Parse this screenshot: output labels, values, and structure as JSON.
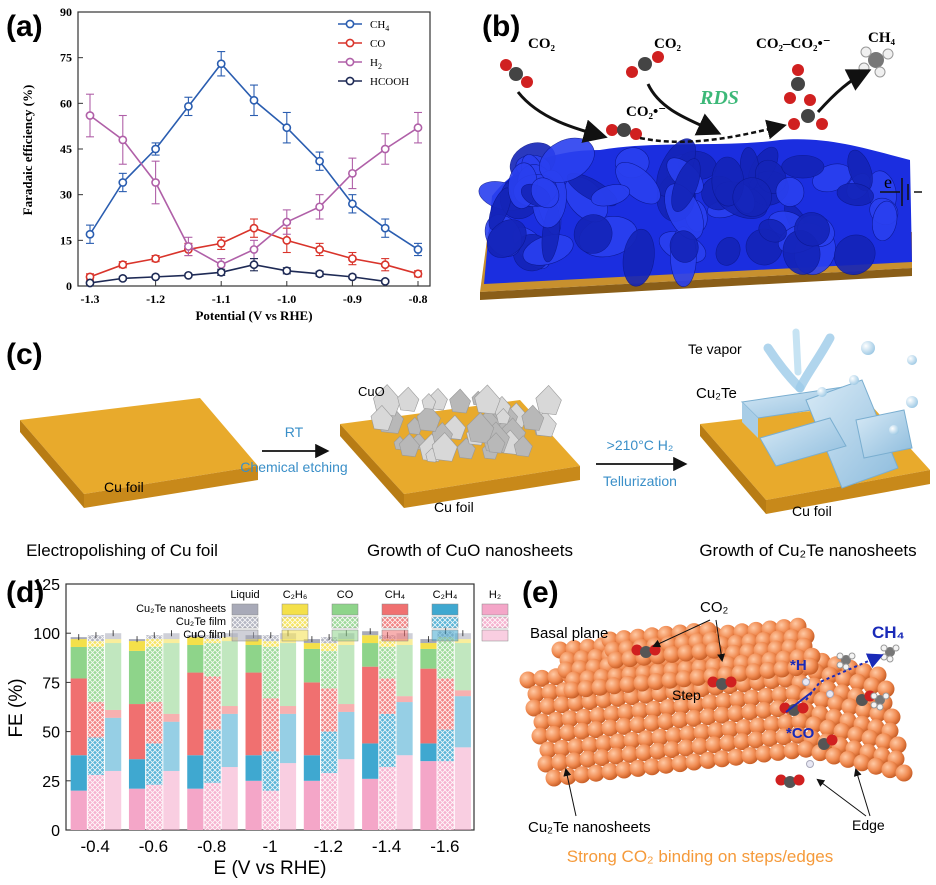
{
  "panel_a": {
    "label": "(a)",
    "chart_data": {
      "type": "line",
      "xlabel": "Potential (V vs RHE)",
      "ylabel": "Faradaic efficiency (%)",
      "xlim": [
        -1.3,
        -0.8
      ],
      "ylim": [
        0,
        90
      ],
      "xticks": [
        "-1.3",
        "-1.2",
        "-1.1",
        "-1.0",
        "-0.9",
        "-0.8"
      ],
      "yticks": [
        "0",
        "15",
        "30",
        "45",
        "60",
        "75",
        "90"
      ],
      "legend_position": "top-right",
      "x": [
        -1.3,
        -1.25,
        -1.2,
        -1.15,
        -1.1,
        -1.05,
        -1.0,
        -0.95,
        -0.9,
        -0.85,
        -0.8
      ],
      "series": [
        {
          "name": "CH4",
          "name_main": "CH",
          "name_sub": "4",
          "color": "#2a5db0",
          "values": [
            17,
            34,
            45,
            59,
            73,
            61,
            52,
            41,
            27,
            19,
            12
          ],
          "err": [
            3,
            3,
            2,
            3,
            4,
            5,
            5,
            3,
            3,
            3,
            2
          ]
        },
        {
          "name": "CO",
          "name_main": "CO",
          "name_sub": "",
          "color": "#d9342b",
          "values": [
            3,
            7,
            9,
            12,
            14,
            19,
            15,
            12,
            9,
            7,
            4
          ],
          "err": [
            1,
            1,
            1,
            2,
            2,
            3,
            4,
            2,
            2,
            2,
            1
          ]
        },
        {
          "name": "H2",
          "name_main": "H",
          "name_sub": "2",
          "color": "#b060a8",
          "values": [
            56,
            48,
            34,
            13,
            7,
            12,
            21,
            26,
            37,
            45,
            52
          ],
          "err": [
            7,
            8,
            7,
            3,
            2,
            3,
            4,
            4,
            5,
            5,
            5
          ]
        },
        {
          "name": "HCOOH",
          "name_main": "HCOOH",
          "name_sub": "",
          "color": "#1e2a55",
          "values": [
            1,
            2.5,
            3,
            3.5,
            4.5,
            7,
            5,
            4,
            3,
            1.5,
            null
          ],
          "err": [
            0.5,
            0.5,
            0.5,
            0.5,
            1,
            2,
            1,
            0.8,
            0.6,
            0.5,
            0
          ]
        }
      ]
    }
  },
  "panel_b": {
    "label": "(b)",
    "co2_1": "CO₂",
    "co2_2": "CO₂",
    "co2_chain": "CO₂–CO₂•⁻",
    "ch4": "CH₄",
    "co2_radical": "CO₂•⁻",
    "rds": "RDS",
    "electron": "e",
    "colors": {
      "surface": "#1b2ee0",
      "base": "#c8902e",
      "rds": "#3cb878"
    }
  },
  "panel_c": {
    "label": "(c)",
    "step1": {
      "foil_label": "Cu foil",
      "caption": "Electropolishing of Cu foil"
    },
    "arrow1": {
      "top": "RT",
      "bottom": "Chemical etching"
    },
    "step2": {
      "top_label": "CuO",
      "foil_label": "Cu foil",
      "caption": "Growth of CuO nanosheets"
    },
    "arrow2": {
      "top": ">210°C H₂",
      "bottom": "Tellurization"
    },
    "step3": {
      "vapor": "Te vapor",
      "top_label": "Cu₂Te",
      "foil_label": "Cu foil",
      "caption": "Growth of Cu₂Te nanosheets"
    },
    "colors": {
      "foil": "#d89a1e",
      "arrow_text": "#3a8fc8"
    }
  },
  "panel_d": {
    "label": "(d)",
    "chart_data": {
      "type": "bar",
      "stacked": true,
      "xlabel": "E (V vs RHE)",
      "ylabel": "FE (%)",
      "ylim": [
        0,
        125
      ],
      "yticks": [
        "0",
        "25",
        "50",
        "75",
        "100",
        "125"
      ],
      "categories": [
        "-0.4",
        "-0.6",
        "-0.8",
        "-1",
        "-1.2",
        "-1.4",
        "-1.6"
      ],
      "film_types": [
        "Cu₂Te nanosheets",
        "Cu₂Te film",
        "CuO film"
      ],
      "products": [
        "Liquid",
        "C₂H₆",
        "CO",
        "CH₄",
        "C₂H₄",
        "H₂"
      ],
      "product_colors": {
        "H2": "#f4a6c8",
        "C2H4": "#3fa8d0",
        "CH4": "#f07070",
        "CO": "#8ed48a",
        "C2H6": "#f4e04a",
        "Liquid": "#a8aab8"
      },
      "series": [
        {
          "name": "Cu2Te nanosheets",
          "H2": [
            20,
            21,
            21,
            25,
            25,
            26,
            35
          ],
          "C2H4": [
            18,
            15,
            17,
            13,
            13,
            18,
            9
          ],
          "CH4": [
            39,
            28,
            42,
            42,
            37,
            39,
            38
          ],
          "CO": [
            16,
            27,
            14,
            14,
            17,
            12,
            10
          ],
          "C2H6": [
            4,
            5,
            4,
            3,
            3,
            4,
            3
          ],
          "Liquid": [
            1,
            1,
            1,
            2,
            2,
            2,
            2
          ]
        },
        {
          "name": "Cu2Te film",
          "H2": [
            28,
            23,
            24,
            20,
            29,
            32,
            35
          ],
          "C2H4": [
            19,
            21,
            27,
            20,
            21,
            27,
            16
          ],
          "CH4": [
            18,
            21,
            27,
            27,
            22,
            18,
            26
          ],
          "CO": [
            28,
            28,
            17,
            26,
            19,
            16,
            19
          ],
          "C2H6": [
            3,
            4,
            2,
            3,
            4,
            4,
            2
          ],
          "Liquid": [
            3,
            2,
            2,
            3,
            3,
            2,
            3
          ]
        },
        {
          "name": "CuO film",
          "H2": [
            30,
            30,
            32,
            34,
            36,
            38,
            42
          ],
          "C2H4": [
            27,
            25,
            27,
            25,
            24,
            27,
            26
          ],
          "CH4": [
            4,
            4,
            4,
            4,
            4,
            3,
            3
          ],
          "CO": [
            34,
            36,
            33,
            32,
            30,
            26,
            24
          ],
          "C2H6": [
            2,
            2,
            2,
            2,
            3,
            3,
            2
          ],
          "Liquid": [
            3,
            3,
            2,
            3,
            3,
            3,
            3
          ]
        }
      ]
    }
  },
  "panel_e": {
    "label": "(e)",
    "co2": "CO₂",
    "basal": "Basal plane",
    "step": "Step",
    "h": "*H",
    "co": "*CO",
    "ch4": "CH₄",
    "edge": "Edge",
    "nanosheets": "Cu₂Te nanosheets",
    "caption": "Strong CO₂ binding on steps/edges",
    "colors": {
      "atom": "#f08a50",
      "caption": "#f59a3a",
      "label_blue": "#1a2ab8"
    }
  }
}
